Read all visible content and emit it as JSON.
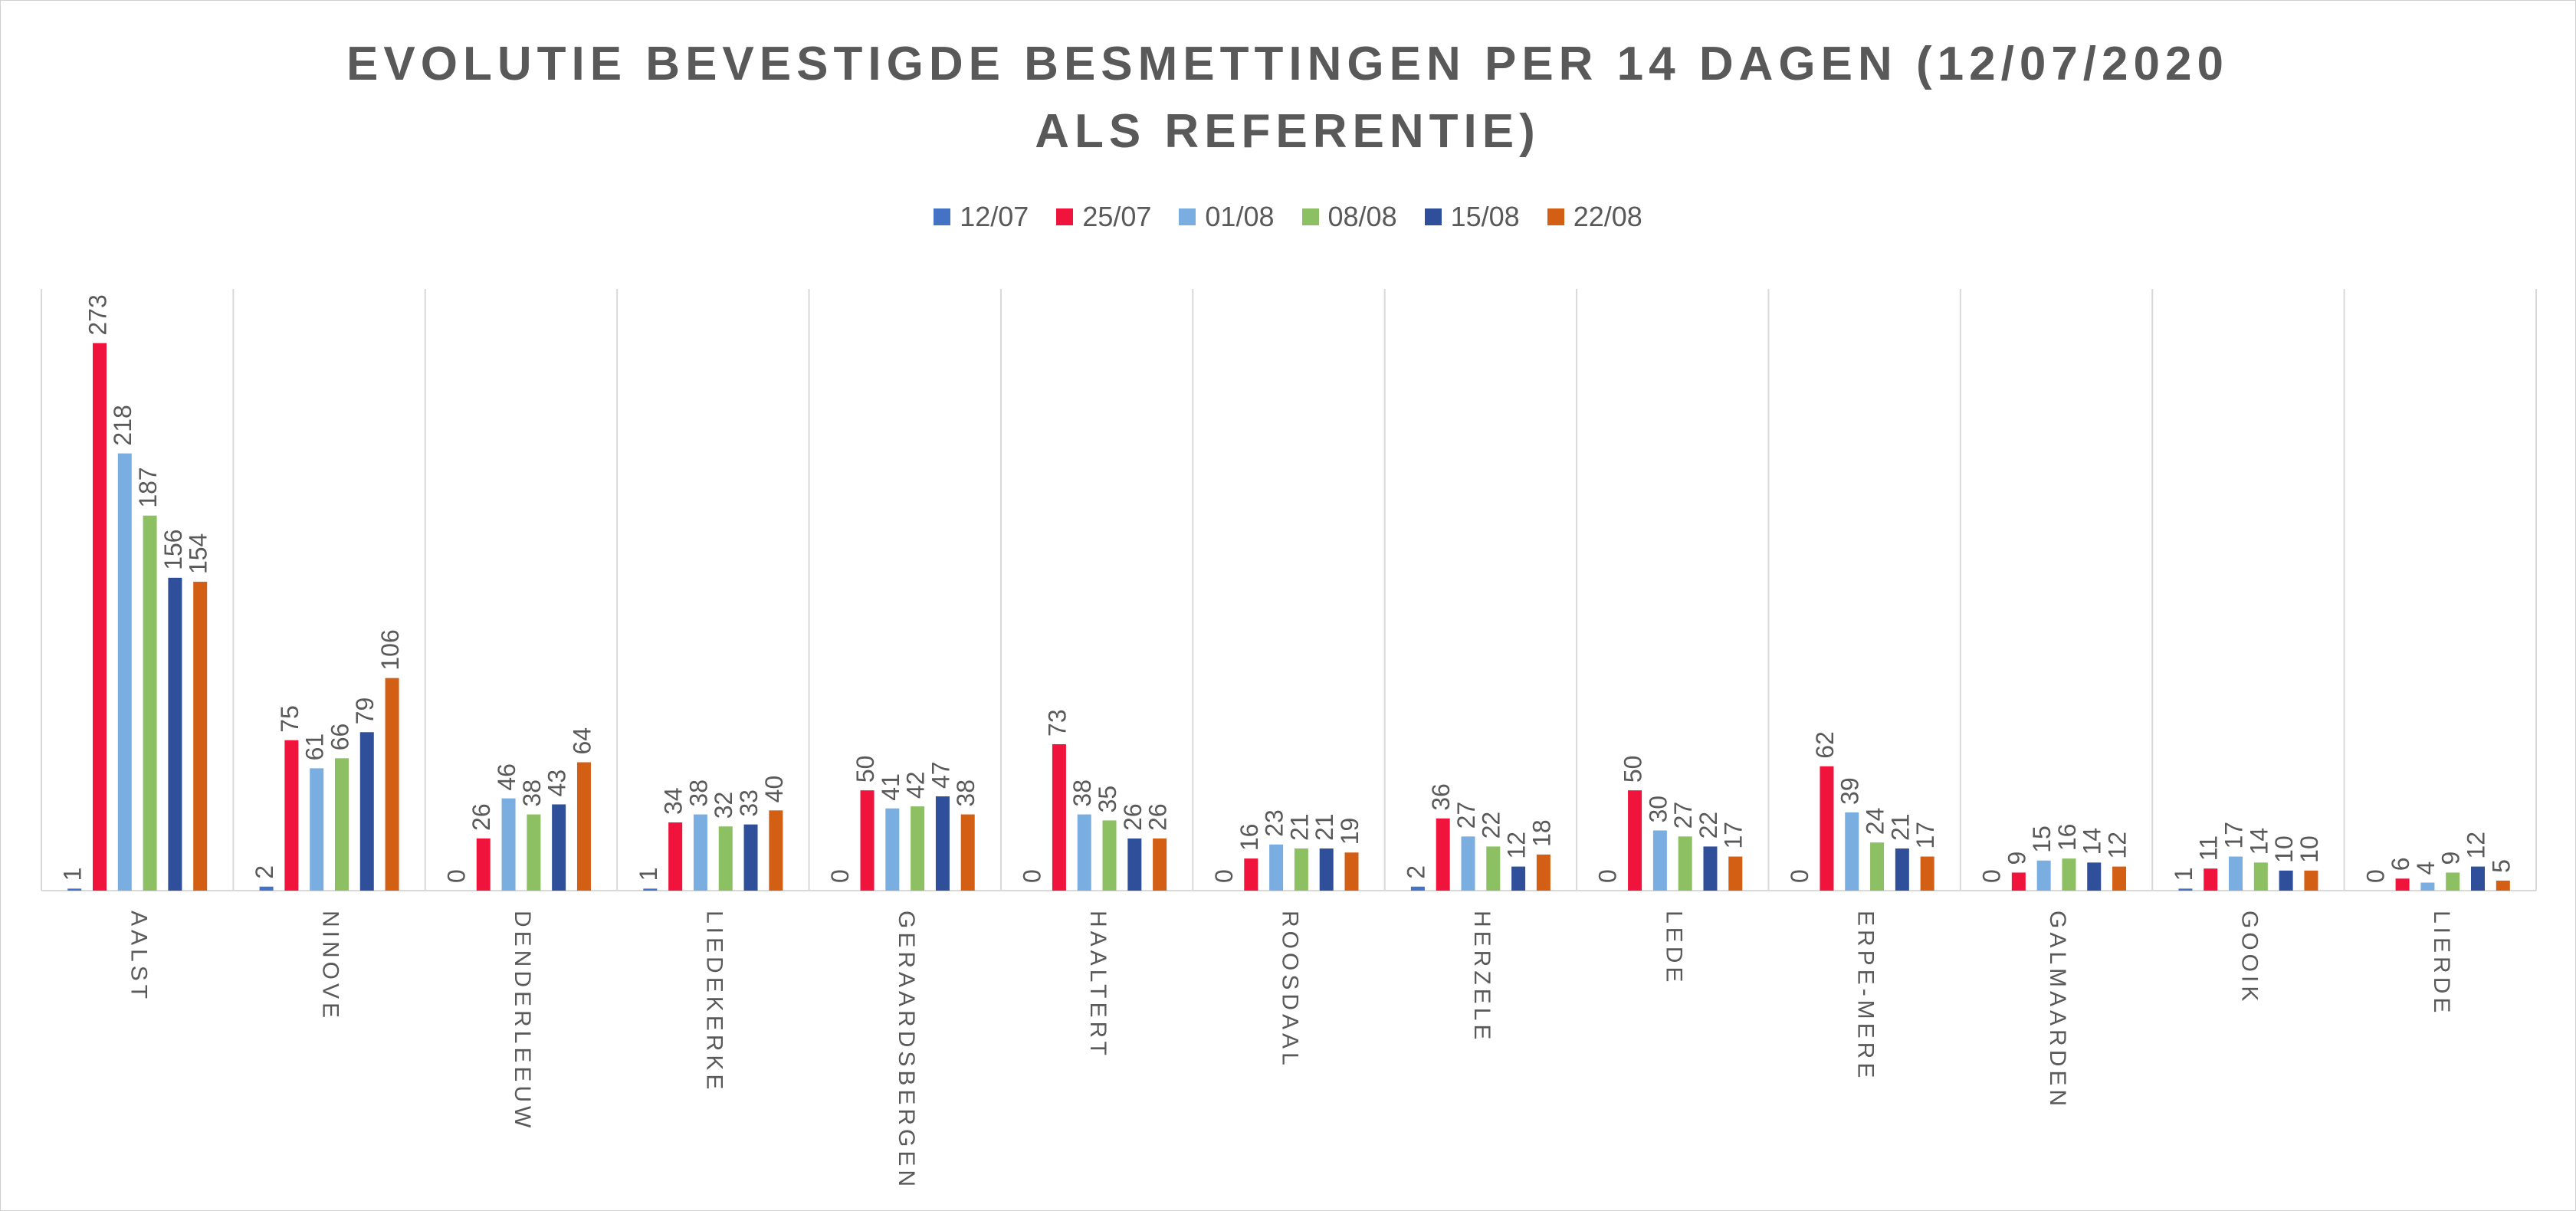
{
  "chart_data": {
    "type": "bar",
    "title": "EVOLUTIE BEVESTIGDE BESMETTINGEN PER 14 DAGEN (12/07/2020 ALS REFERENTIE)",
    "categories": [
      "AALST",
      "NINOVE",
      "DENDERLEEUW",
      "LIEDEKERKE",
      "GERAARDSBERGEN",
      "HAALTERT",
      "ROOSDAAL",
      "HERZELE",
      "LEDE",
      "ERPE-MERE",
      "GALMAARDEN",
      "GOOIK",
      "LIERDE"
    ],
    "series": [
      {
        "name": "12/07",
        "color": "#4472c4",
        "values": [
          1,
          2,
          0,
          1,
          0,
          0,
          0,
          2,
          0,
          0,
          0,
          1,
          0
        ]
      },
      {
        "name": "25/07",
        "color": "#f0143c",
        "values": [
          273,
          75,
          26,
          34,
          50,
          73,
          16,
          36,
          50,
          62,
          9,
          11,
          6
        ]
      },
      {
        "name": "01/08",
        "color": "#7aaee0",
        "values": [
          218,
          61,
          46,
          38,
          41,
          38,
          23,
          27,
          30,
          39,
          15,
          17,
          4
        ]
      },
      {
        "name": "08/08",
        "color": "#8cc063",
        "values": [
          187,
          66,
          38,
          32,
          42,
          35,
          21,
          22,
          27,
          24,
          16,
          14,
          9
        ]
      },
      {
        "name": "15/08",
        "color": "#2f4f9a",
        "values": [
          156,
          79,
          43,
          33,
          47,
          26,
          21,
          12,
          22,
          21,
          14,
          10,
          12
        ]
      },
      {
        "name": "22/08",
        "color": "#d35f14",
        "values": [
          154,
          106,
          64,
          40,
          38,
          26,
          19,
          18,
          17,
          17,
          12,
          10,
          5
        ]
      }
    ],
    "ylim": [
      0,
      300
    ],
    "legend": "top"
  }
}
